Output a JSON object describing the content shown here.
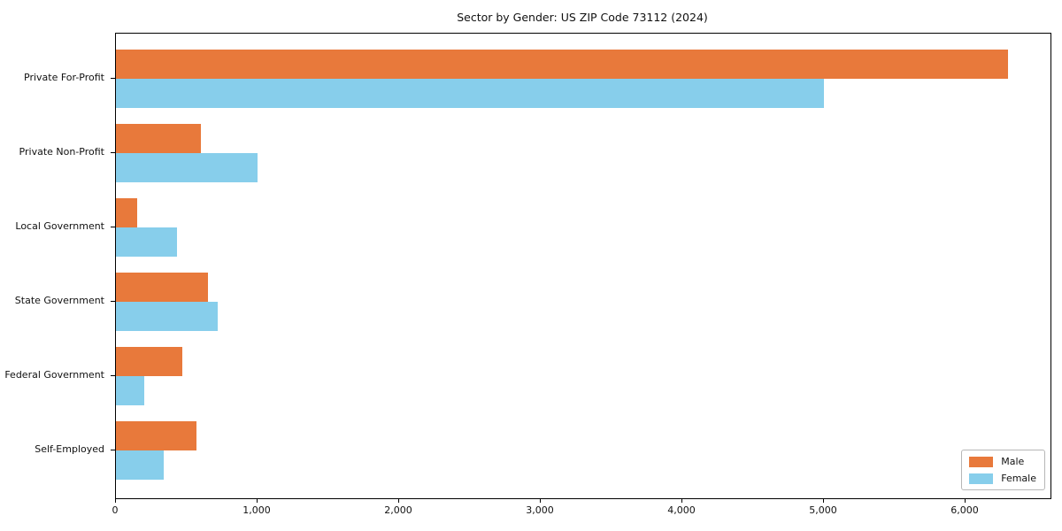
{
  "chart_data": {
    "type": "bar",
    "orientation": "horizontal",
    "title": "Sector by Gender: US ZIP Code 73112 (2024)",
    "categories": [
      "Private For-Profit",
      "Private Non-Profit",
      "Local Government",
      "State Government",
      "Federal Government",
      "Self-Employed"
    ],
    "series": [
      {
        "name": "Male",
        "color": "#e8793b",
        "values": [
          6300,
          600,
          150,
          650,
          470,
          570
        ]
      },
      {
        "name": "Female",
        "color": "#87ceeb",
        "values": [
          5000,
          1000,
          430,
          720,
          200,
          340
        ]
      }
    ],
    "xlabel": "",
    "ylabel": "",
    "xlim": [
      0,
      6600
    ],
    "x_ticks": [
      0,
      1000,
      2000,
      3000,
      4000,
      5000,
      6000
    ],
    "x_tick_labels": [
      "0",
      "1,000",
      "2,000",
      "3,000",
      "4,000",
      "5,000",
      "6,000"
    ],
    "grid": false,
    "legend_position": "lower right",
    "frame": "full-box",
    "background_color": "#ffffff",
    "text_color": "#111111"
  }
}
